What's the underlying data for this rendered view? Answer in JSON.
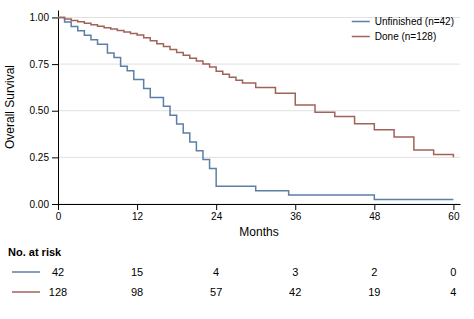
{
  "chart_data": {
    "type": "step",
    "xlabel": "Months",
    "ylabel": "Overall Survival",
    "xlim": [
      0,
      61
    ],
    "ylim": [
      0.0,
      1.04
    ],
    "xticks": [
      0,
      12,
      24,
      36,
      48,
      60
    ],
    "yticks": [
      {
        "value": 0.0,
        "label": "0.00"
      },
      {
        "value": 0.25,
        "label": "0.25"
      },
      {
        "value": 0.5,
        "label": "0.50"
      },
      {
        "value": 0.75,
        "label": "0.75"
      },
      {
        "value": 1.0,
        "label": "1.00"
      }
    ],
    "grid": "y",
    "legend": "upper right",
    "at_risk_label": "No. at risk",
    "at_risk_x": [
      0,
      12,
      24,
      36,
      48,
      60
    ],
    "series": [
      {
        "name": "Unfinished (n=42)",
        "color": "#5b7fa6",
        "x": [
          0,
          0.5,
          1,
          1.5,
          2,
          2.5,
          3,
          3.5,
          4,
          4.5,
          5,
          5.5,
          6,
          7,
          7.5,
          8,
          8.5,
          9,
          9.5,
          10,
          10.5,
          11,
          11.5,
          12,
          13,
          13.5,
          14,
          15,
          16,
          17,
          18,
          19,
          20,
          21,
          22,
          23,
          24,
          27,
          30,
          33,
          35,
          36,
          48,
          60
        ],
        "values": [
          1.0,
          1.0,
          0.976,
          0.976,
          0.952,
          0.952,
          0.929,
          0.929,
          0.905,
          0.905,
          0.881,
          0.881,
          0.857,
          0.857,
          0.81,
          0.81,
          0.786,
          0.786,
          0.738,
          0.738,
          0.714,
          0.714,
          0.667,
          0.667,
          0.619,
          0.619,
          0.571,
          0.571,
          0.524,
          0.476,
          0.429,
          0.381,
          0.333,
          0.286,
          0.238,
          0.19,
          0.095,
          0.095,
          0.071,
          0.071,
          0.048,
          0.048,
          0.024,
          0.024
        ],
        "at_risk": [
          42,
          15,
          4,
          3,
          2,
          0
        ]
      },
      {
        "name": "Done (n=128)",
        "color": "#a0635a",
        "x": [
          0,
          0.5,
          1,
          1.5,
          2,
          2.5,
          3,
          3.5,
          4,
          5,
          6,
          7,
          8,
          9,
          10,
          11,
          12,
          13,
          14,
          15,
          16,
          17,
          18,
          19,
          20,
          21,
          22,
          23,
          24,
          25,
          26,
          27,
          28,
          30,
          33,
          36,
          39,
          42,
          45,
          48,
          51,
          54,
          57,
          60
        ],
        "values": [
          1.0,
          1.0,
          0.992,
          0.992,
          0.984,
          0.984,
          0.977,
          0.977,
          0.969,
          0.961,
          0.953,
          0.945,
          0.938,
          0.93,
          0.922,
          0.914,
          0.906,
          0.891,
          0.875,
          0.859,
          0.844,
          0.828,
          0.812,
          0.797,
          0.781,
          0.766,
          0.75,
          0.734,
          0.711,
          0.695,
          0.68,
          0.664,
          0.648,
          0.625,
          0.594,
          0.531,
          0.492,
          0.469,
          0.43,
          0.398,
          0.359,
          0.289,
          0.266,
          0.25
        ],
        "at_risk": [
          128,
          98,
          57,
          42,
          19,
          4
        ]
      }
    ]
  }
}
